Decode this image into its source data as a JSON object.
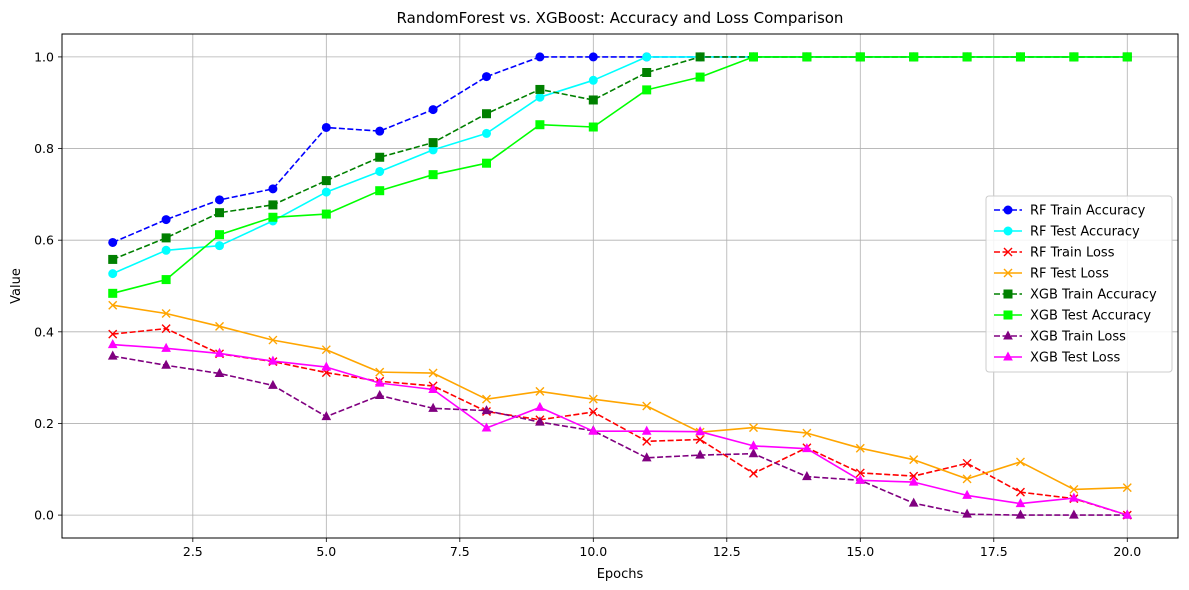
{
  "chart_data": {
    "type": "line",
    "title": "RandomForest vs. XGBoost: Accuracy and Loss Comparison",
    "xlabel": "Epochs",
    "ylabel": "Value",
    "xlim": [
      0.05,
      20.95
    ],
    "ylim": [
      -0.05,
      1.05
    ],
    "xticks": [
      2.5,
      5.0,
      7.5,
      10.0,
      12.5,
      15.0,
      17.5,
      20.0
    ],
    "xtick_labels": [
      "2.5",
      "5.0",
      "7.5",
      "10.0",
      "12.5",
      "15.0",
      "17.5",
      "20.0"
    ],
    "yticks": [
      0.0,
      0.2,
      0.4,
      0.6,
      0.8,
      1.0
    ],
    "ytick_labels": [
      "0.0",
      "0.2",
      "0.4",
      "0.6",
      "0.8",
      "1.0"
    ],
    "grid": true,
    "legend_position": "center-right",
    "x": [
      1,
      2,
      3,
      4,
      5,
      6,
      7,
      8,
      9,
      10,
      11,
      12,
      13,
      14,
      15,
      16,
      17,
      18,
      19,
      20
    ],
    "series": [
      {
        "name": "RF Train Accuracy",
        "color": "#0000ff",
        "dash": true,
        "marker": "circle",
        "values": [
          0.595,
          0.645,
          0.688,
          0.712,
          0.846,
          0.838,
          0.885,
          0.957,
          1.0,
          1.0,
          1.0,
          1.0,
          1.0,
          1.0,
          1.0,
          1.0,
          1.0,
          1.0,
          1.0,
          1.0
        ]
      },
      {
        "name": "RF Test Accuracy",
        "color": "#00ffff",
        "dash": false,
        "marker": "circle",
        "values": [
          0.527,
          0.578,
          0.588,
          0.642,
          0.705,
          0.75,
          0.797,
          0.833,
          0.912,
          0.949,
          1.0,
          1.0,
          1.0,
          1.0,
          1.0,
          1.0,
          1.0,
          1.0,
          1.0,
          1.0
        ]
      },
      {
        "name": "RF Train Loss",
        "color": "#ff0000",
        "dash": true,
        "marker": "x",
        "values": [
          0.395,
          0.407,
          0.352,
          0.335,
          0.311,
          0.292,
          0.282,
          0.226,
          0.208,
          0.225,
          0.161,
          0.165,
          0.091,
          0.147,
          0.092,
          0.085,
          0.113,
          0.05,
          0.036,
          0.0
        ]
      },
      {
        "name": "RF Test Loss",
        "color": "#ffa500",
        "dash": false,
        "marker": "x",
        "values": [
          0.458,
          0.44,
          0.412,
          0.382,
          0.361,
          0.312,
          0.31,
          0.253,
          0.27,
          0.253,
          0.238,
          0.181,
          0.191,
          0.179,
          0.146,
          0.121,
          0.079,
          0.116,
          0.056,
          0.06
        ]
      },
      {
        "name": "XGB Train Accuracy",
        "color": "#008000",
        "dash": true,
        "marker": "square",
        "values": [
          0.558,
          0.605,
          0.66,
          0.677,
          0.73,
          0.781,
          0.813,
          0.876,
          0.929,
          0.906,
          0.966,
          1.0,
          1.0,
          1.0,
          1.0,
          1.0,
          1.0,
          1.0,
          1.0,
          1.0
        ]
      },
      {
        "name": "XGB Test Accuracy",
        "color": "#00ff00",
        "dash": false,
        "marker": "square",
        "values": [
          0.484,
          0.514,
          0.612,
          0.65,
          0.657,
          0.708,
          0.743,
          0.768,
          0.852,
          0.847,
          0.928,
          0.956,
          1.0,
          1.0,
          1.0,
          1.0,
          1.0,
          1.0,
          1.0,
          1.0
        ]
      },
      {
        "name": "XGB Train Loss",
        "color": "#800080",
        "dash": true,
        "marker": "triangle",
        "values": [
          0.347,
          0.327,
          0.309,
          0.283,
          0.215,
          0.261,
          0.233,
          0.228,
          0.203,
          0.184,
          0.125,
          0.131,
          0.134,
          0.084,
          0.076,
          0.026,
          0.002,
          0.0,
          0.0,
          0.0
        ]
      },
      {
        "name": "XGB Test Loss",
        "color": "#ff00ff",
        "dash": false,
        "marker": "triangle",
        "values": [
          0.372,
          0.364,
          0.353,
          0.336,
          0.323,
          0.288,
          0.274,
          0.19,
          0.235,
          0.183,
          0.183,
          0.182,
          0.151,
          0.145,
          0.076,
          0.072,
          0.043,
          0.025,
          0.037,
          0.0
        ]
      }
    ]
  }
}
